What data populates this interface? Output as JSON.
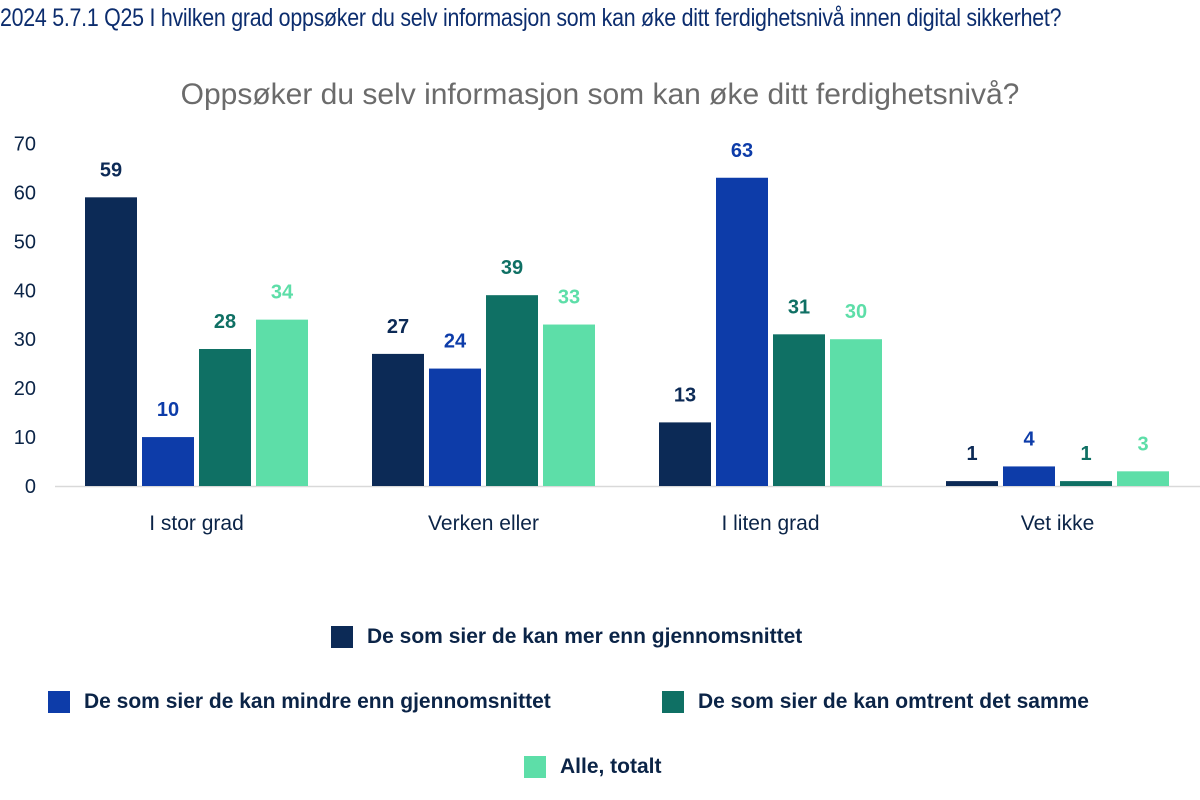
{
  "heading": "2024 5.7.1 Q25 I hvilken grad oppsøker du selv informasjon som kan øke ditt ferdighetsnivå innen digital sikkerhet?",
  "chart_data": {
    "type": "bar",
    "title": "Oppsøker du selv informasjon som kan øke ditt ferdighetsnivå?",
    "xlabel": "",
    "ylabel": "",
    "ylim": [
      0,
      70
    ],
    "yticks": [
      0,
      10,
      20,
      30,
      40,
      50,
      60,
      70
    ],
    "grid": false,
    "legend_position": "bottom",
    "categories": [
      "I stor grad",
      "Verken eller",
      "I liten grad",
      "Vet ikke"
    ],
    "series": [
      {
        "name": "De som sier de kan mer enn gjennomsnittet",
        "color": "#0c2a56",
        "label_color": "#0c2a56",
        "values": [
          59,
          27,
          13,
          1
        ]
      },
      {
        "name": "De som sier de kan mindre enn gjennomsnittet",
        "color": "#0d3ca9",
        "label_color": "#0d3ca9",
        "values": [
          10,
          24,
          63,
          4
        ]
      },
      {
        "name": "De som sier de kan omtrent det samme",
        "color": "#0f7064",
        "label_color": "#0f7064",
        "values": [
          28,
          39,
          31,
          1
        ]
      },
      {
        "name": "Alle, totalt",
        "color": "#5ddea8",
        "label_color": "#5ddea8",
        "values": [
          34,
          33,
          30,
          3
        ]
      }
    ]
  }
}
